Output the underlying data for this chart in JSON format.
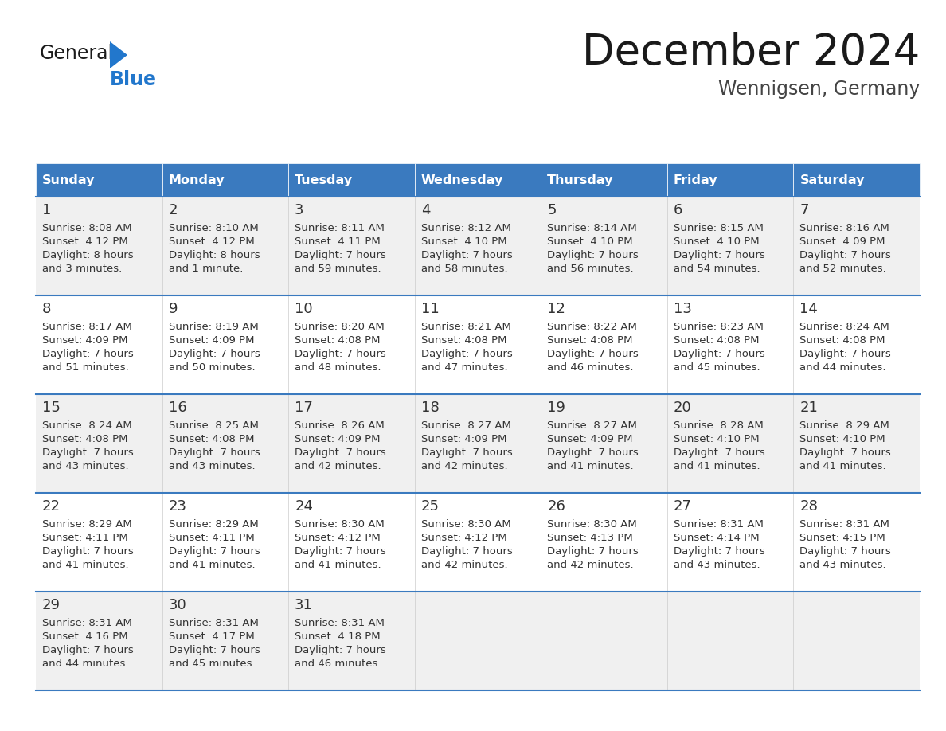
{
  "title": "December 2024",
  "subtitle": "Wennigsen, Germany",
  "days_of_week": [
    "Sunday",
    "Monday",
    "Tuesday",
    "Wednesday",
    "Thursday",
    "Friday",
    "Saturday"
  ],
  "header_bg": "#3a7abf",
  "header_text": "#ffffff",
  "cell_bg_odd": "#f0f0f0",
  "cell_bg_even": "#ffffff",
  "border_color": "#3a7abf",
  "day_num_color": "#333333",
  "detail_text_color": "#333333",
  "logo_general_color": "#1a1a1a",
  "logo_blue_color": "#2277cc",
  "calendar_data": [
    [
      {
        "day": 1,
        "sunrise": "8:08 AM",
        "sunset": "4:12 PM",
        "daylight_l1": "8 hours",
        "daylight_l2": "and 3 minutes."
      },
      {
        "day": 2,
        "sunrise": "8:10 AM",
        "sunset": "4:12 PM",
        "daylight_l1": "8 hours",
        "daylight_l2": "and 1 minute."
      },
      {
        "day": 3,
        "sunrise": "8:11 AM",
        "sunset": "4:11 PM",
        "daylight_l1": "7 hours",
        "daylight_l2": "and 59 minutes."
      },
      {
        "day": 4,
        "sunrise": "8:12 AM",
        "sunset": "4:10 PM",
        "daylight_l1": "7 hours",
        "daylight_l2": "and 58 minutes."
      },
      {
        "day": 5,
        "sunrise": "8:14 AM",
        "sunset": "4:10 PM",
        "daylight_l1": "7 hours",
        "daylight_l2": "and 56 minutes."
      },
      {
        "day": 6,
        "sunrise": "8:15 AM",
        "sunset": "4:10 PM",
        "daylight_l1": "7 hours",
        "daylight_l2": "and 54 minutes."
      },
      {
        "day": 7,
        "sunrise": "8:16 AM",
        "sunset": "4:09 PM",
        "daylight_l1": "7 hours",
        "daylight_l2": "and 52 minutes."
      }
    ],
    [
      {
        "day": 8,
        "sunrise": "8:17 AM",
        "sunset": "4:09 PM",
        "daylight_l1": "7 hours",
        "daylight_l2": "and 51 minutes."
      },
      {
        "day": 9,
        "sunrise": "8:19 AM",
        "sunset": "4:09 PM",
        "daylight_l1": "7 hours",
        "daylight_l2": "and 50 minutes."
      },
      {
        "day": 10,
        "sunrise": "8:20 AM",
        "sunset": "4:08 PM",
        "daylight_l1": "7 hours",
        "daylight_l2": "and 48 minutes."
      },
      {
        "day": 11,
        "sunrise": "8:21 AM",
        "sunset": "4:08 PM",
        "daylight_l1": "7 hours",
        "daylight_l2": "and 47 minutes."
      },
      {
        "day": 12,
        "sunrise": "8:22 AM",
        "sunset": "4:08 PM",
        "daylight_l1": "7 hours",
        "daylight_l2": "and 46 minutes."
      },
      {
        "day": 13,
        "sunrise": "8:23 AM",
        "sunset": "4:08 PM",
        "daylight_l1": "7 hours",
        "daylight_l2": "and 45 minutes."
      },
      {
        "day": 14,
        "sunrise": "8:24 AM",
        "sunset": "4:08 PM",
        "daylight_l1": "7 hours",
        "daylight_l2": "and 44 minutes."
      }
    ],
    [
      {
        "day": 15,
        "sunrise": "8:24 AM",
        "sunset": "4:08 PM",
        "daylight_l1": "7 hours",
        "daylight_l2": "and 43 minutes."
      },
      {
        "day": 16,
        "sunrise": "8:25 AM",
        "sunset": "4:08 PM",
        "daylight_l1": "7 hours",
        "daylight_l2": "and 43 minutes."
      },
      {
        "day": 17,
        "sunrise": "8:26 AM",
        "sunset": "4:09 PM",
        "daylight_l1": "7 hours",
        "daylight_l2": "and 42 minutes."
      },
      {
        "day": 18,
        "sunrise": "8:27 AM",
        "sunset": "4:09 PM",
        "daylight_l1": "7 hours",
        "daylight_l2": "and 42 minutes."
      },
      {
        "day": 19,
        "sunrise": "8:27 AM",
        "sunset": "4:09 PM",
        "daylight_l1": "7 hours",
        "daylight_l2": "and 41 minutes."
      },
      {
        "day": 20,
        "sunrise": "8:28 AM",
        "sunset": "4:10 PM",
        "daylight_l1": "7 hours",
        "daylight_l2": "and 41 minutes."
      },
      {
        "day": 21,
        "sunrise": "8:29 AM",
        "sunset": "4:10 PM",
        "daylight_l1": "7 hours",
        "daylight_l2": "and 41 minutes."
      }
    ],
    [
      {
        "day": 22,
        "sunrise": "8:29 AM",
        "sunset": "4:11 PM",
        "daylight_l1": "7 hours",
        "daylight_l2": "and 41 minutes."
      },
      {
        "day": 23,
        "sunrise": "8:29 AM",
        "sunset": "4:11 PM",
        "daylight_l1": "7 hours",
        "daylight_l2": "and 41 minutes."
      },
      {
        "day": 24,
        "sunrise": "8:30 AM",
        "sunset": "4:12 PM",
        "daylight_l1": "7 hours",
        "daylight_l2": "and 41 minutes."
      },
      {
        "day": 25,
        "sunrise": "8:30 AM",
        "sunset": "4:12 PM",
        "daylight_l1": "7 hours",
        "daylight_l2": "and 42 minutes."
      },
      {
        "day": 26,
        "sunrise": "8:30 AM",
        "sunset": "4:13 PM",
        "daylight_l1": "7 hours",
        "daylight_l2": "and 42 minutes."
      },
      {
        "day": 27,
        "sunrise": "8:31 AM",
        "sunset": "4:14 PM",
        "daylight_l1": "7 hours",
        "daylight_l2": "and 43 minutes."
      },
      {
        "day": 28,
        "sunrise": "8:31 AM",
        "sunset": "4:15 PM",
        "daylight_l1": "7 hours",
        "daylight_l2": "and 43 minutes."
      }
    ],
    [
      {
        "day": 29,
        "sunrise": "8:31 AM",
        "sunset": "4:16 PM",
        "daylight_l1": "7 hours",
        "daylight_l2": "and 44 minutes."
      },
      {
        "day": 30,
        "sunrise": "8:31 AM",
        "sunset": "4:17 PM",
        "daylight_l1": "7 hours",
        "daylight_l2": "and 45 minutes."
      },
      {
        "day": 31,
        "sunrise": "8:31 AM",
        "sunset": "4:18 PM",
        "daylight_l1": "7 hours",
        "daylight_l2": "and 46 minutes."
      },
      null,
      null,
      null,
      null
    ]
  ]
}
